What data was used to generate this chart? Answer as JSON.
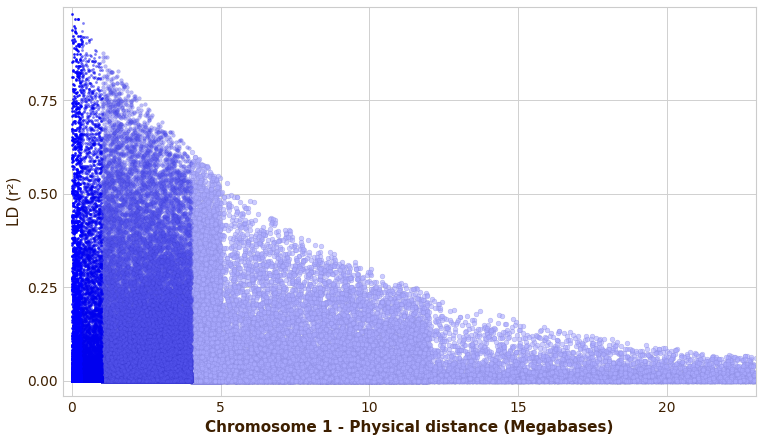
{
  "title": "",
  "xlabel": "Chromosome 1 - Physical distance (Megabases)",
  "ylabel": "LD (r²)",
  "xlim": [
    -0.3,
    23.0
  ],
  "ylim": [
    -0.04,
    1.0
  ],
  "xticks": [
    0,
    5,
    10,
    15,
    20
  ],
  "yticks": [
    0.0,
    0.25,
    0.5,
    0.75
  ],
  "xlabel_color": "#3d1f00",
  "ylabel_color": "#3d1f00",
  "tick_color": "#3d1f00",
  "background_color": "#ffffff",
  "grid_color": "#d0d0d0",
  "n_points": 150000,
  "xlabel_fontsize": 11,
  "ylabel_fontsize": 11,
  "tick_fontsize": 10,
  "point_size_large": 8,
  "point_size_small": 3,
  "alpha_dense": 0.9,
  "alpha_sparse": 0.5
}
